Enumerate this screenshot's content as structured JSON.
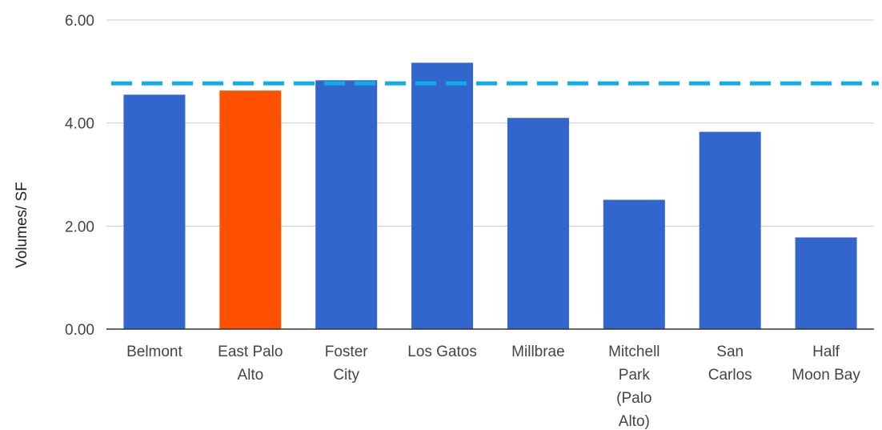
{
  "chart_data": {
    "type": "bar",
    "title": "",
    "xlabel": "",
    "ylabel": "Volumes/ SF",
    "ylim": [
      0,
      6
    ],
    "yticks": [
      "0.00",
      "2.00",
      "4.00",
      "6.00"
    ],
    "grid": true,
    "legend": "none",
    "categories": [
      [
        "Belmont"
      ],
      [
        "East Palo",
        "Alto"
      ],
      [
        "Foster",
        "City"
      ],
      [
        "Los Gatos"
      ],
      [
        "Millbrae"
      ],
      [
        "Mitchell",
        "Park",
        "(Palo",
        "Alto)"
      ],
      [
        "San",
        "Carlos"
      ],
      [
        "Half",
        "Moon Bay"
      ]
    ],
    "values": [
      4.55,
      4.63,
      4.83,
      5.17,
      4.1,
      2.51,
      3.83,
      1.78
    ],
    "highlight_index": 1,
    "reference_line": {
      "value": 4.77,
      "style": "dashed"
    },
    "colors": {
      "bar": "#3366cc",
      "highlight": "#ff5100",
      "reference": "#10aee8",
      "grid": "#cccccc",
      "axis": "#333333"
    }
  }
}
